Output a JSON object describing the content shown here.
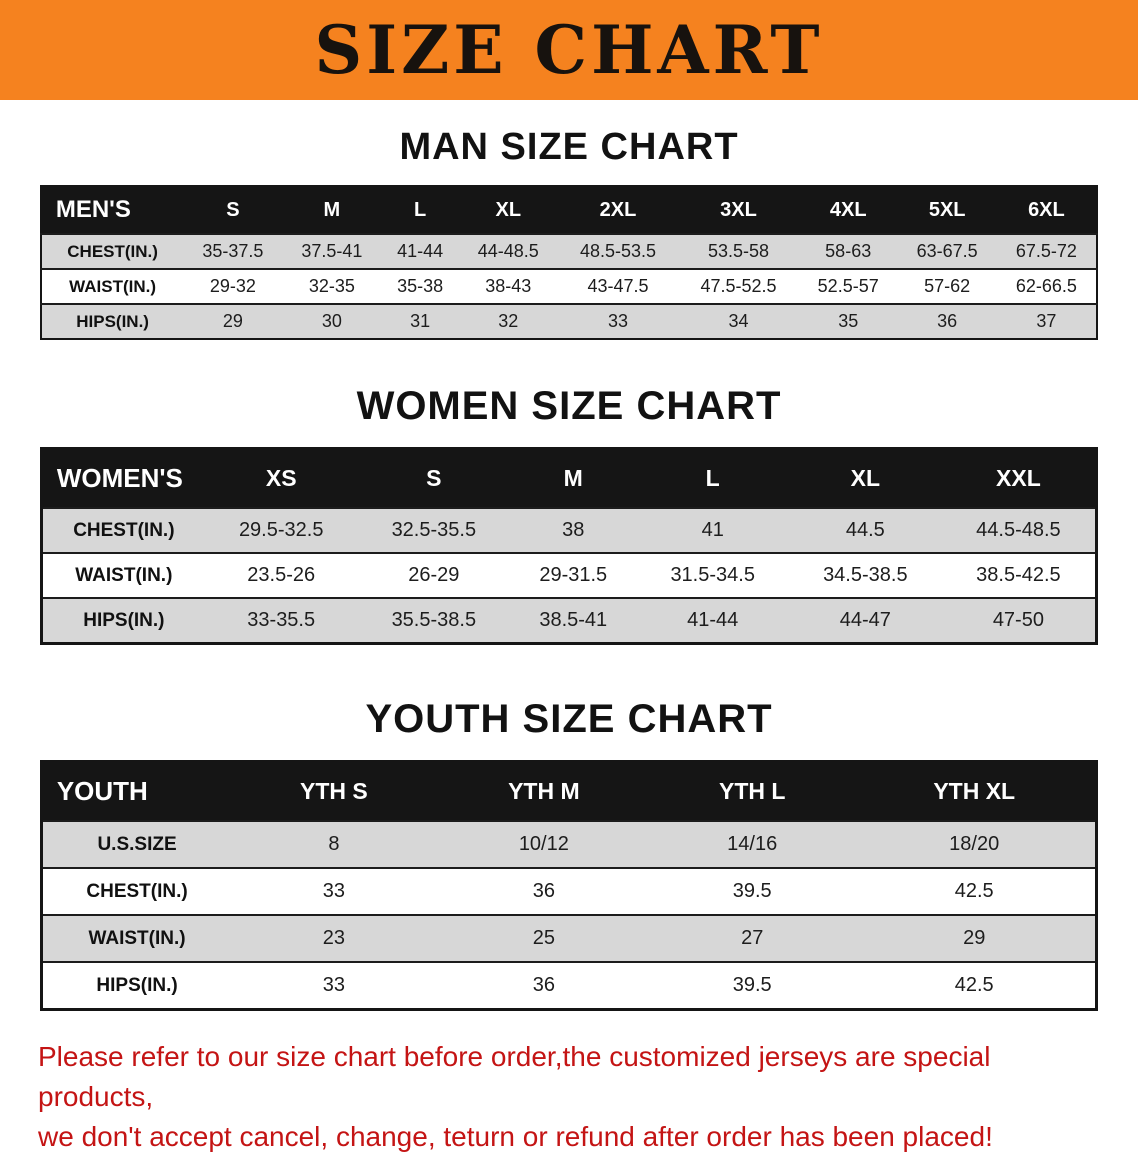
{
  "banner": {
    "title": "SIZE CHART"
  },
  "colors": {
    "banner_background": "#F5821F",
    "table_header_background": "#151515",
    "table_header_text": "#ffffff",
    "shaded_row_background": "#d7d7d7",
    "notice_text": "#c41414"
  },
  "men": {
    "name": "men",
    "heading": "MAN SIZE CHART",
    "corner": "MEN'S",
    "columns": [
      "S",
      "M",
      "L",
      "XL",
      "2XL",
      "3XL",
      "4XL",
      "5XL",
      "6XL"
    ],
    "rows": [
      {
        "label": "CHEST(IN.)",
        "values": [
          "35-37.5",
          "37.5-41",
          "41-44",
          "44-48.5",
          "48.5-53.5",
          "53.5-58",
          "58-63",
          "63-67.5",
          "67.5-72"
        ]
      },
      {
        "label": "WAIST(IN.)",
        "values": [
          "29-32",
          "32-35",
          "35-38",
          "38-43",
          "43-47.5",
          "47.5-52.5",
          "52.5-57",
          "57-62",
          "62-66.5"
        ]
      },
      {
        "label": "HIPS(IN.)",
        "values": [
          "29",
          "30",
          "31",
          "32",
          "33",
          "34",
          "35",
          "36",
          "37"
        ]
      }
    ]
  },
  "women": {
    "name": "women",
    "heading": "WOMEN SIZE CHART",
    "corner": "WOMEN'S",
    "columns": [
      "XS",
      "S",
      "M",
      "L",
      "XL",
      "XXL"
    ],
    "rows": [
      {
        "label": "CHEST(IN.)",
        "values": [
          "29.5-32.5",
          "32.5-35.5",
          "38",
          "41",
          "44.5",
          "44.5-48.5"
        ]
      },
      {
        "label": "WAIST(IN.)",
        "values": [
          "23.5-26",
          "26-29",
          "29-31.5",
          "31.5-34.5",
          "34.5-38.5",
          "38.5-42.5"
        ]
      },
      {
        "label": "HIPS(IN.)",
        "values": [
          "33-35.5",
          "35.5-38.5",
          "38.5-41",
          "41-44",
          "44-47",
          "47-50"
        ]
      }
    ]
  },
  "youth": {
    "name": "youth",
    "heading": "YOUTH SIZE CHART",
    "corner": "YOUTH",
    "columns": [
      "YTH S",
      "YTH M",
      "YTH L",
      "YTH XL"
    ],
    "rows": [
      {
        "label": "U.S.SIZE",
        "values": [
          "8",
          "10/12",
          "14/16",
          "18/20"
        ]
      },
      {
        "label": "CHEST(IN.)",
        "values": [
          "33",
          "36",
          "39.5",
          "42.5"
        ]
      },
      {
        "label": "WAIST(IN.)",
        "values": [
          "23",
          "25",
          "27",
          "29"
        ]
      },
      {
        "label": "HIPS(IN.)",
        "values": [
          "33",
          "36",
          "39.5",
          "42.5"
        ]
      }
    ]
  },
  "footer": {
    "line1": "Please refer to our size chart before order,the customized jerseys are special products,",
    "line2": "we don't accept cancel, change, teturn or refund after order has been placed!"
  }
}
